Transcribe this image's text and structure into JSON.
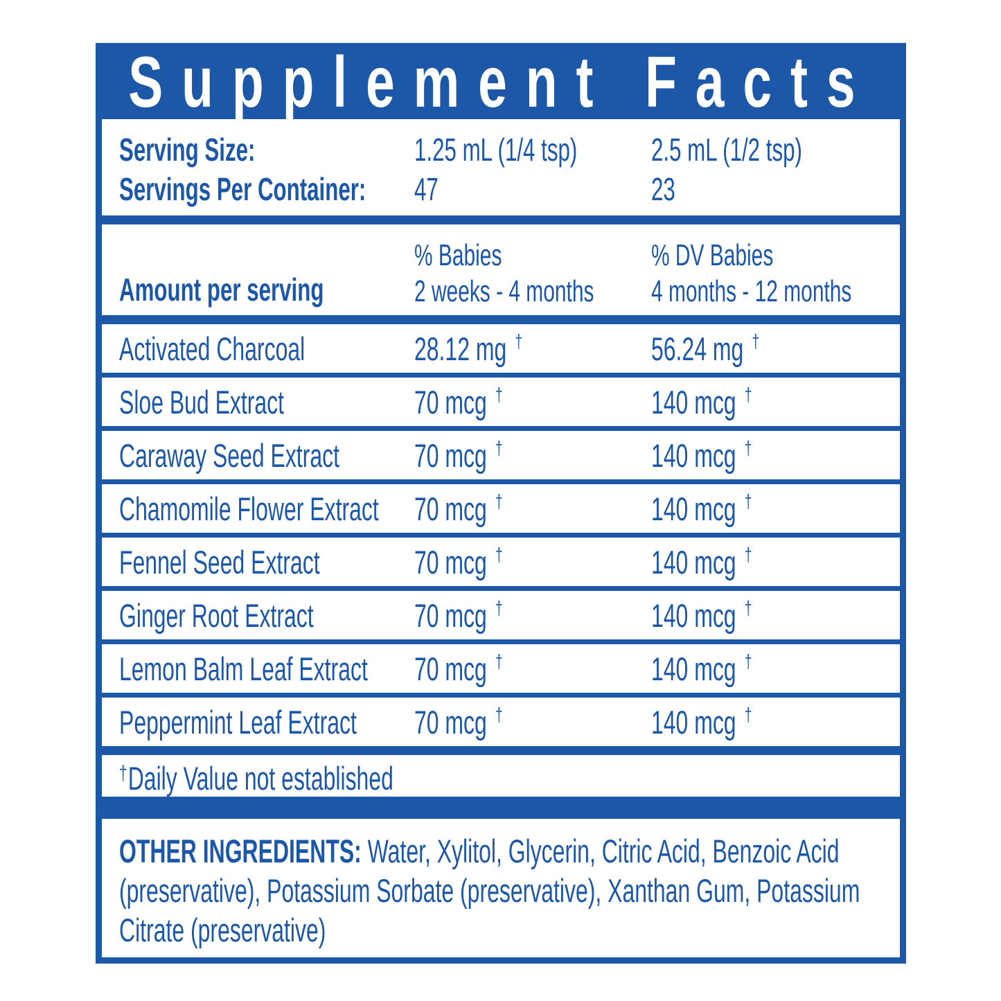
{
  "label": {
    "title": "Supplement Facts",
    "serving": {
      "size_label": "Serving Size:",
      "size_value_1": "1.25 mL (1/4 tsp)",
      "size_value_2": "2.5 mL (1/2 tsp)",
      "per_container_label": "Servings Per Container:",
      "per_container_value_1": "47",
      "per_container_value_2": "23"
    },
    "columns": {
      "amount_header": "Amount per serving",
      "col1_line1": "% Babies",
      "col1_line2": "2 weeks - 4 months",
      "col2_line1": "% DV Babies",
      "col2_line2": "4 months - 12 months"
    },
    "dagger": "†",
    "rows": [
      {
        "name": "Activated Charcoal",
        "amount1": "28.12 mg",
        "amount2": "56.24 mg"
      },
      {
        "name": "Sloe Bud Extract",
        "amount1": "70 mcg",
        "amount2": "140 mcg"
      },
      {
        "name": "Caraway Seed Extract",
        "amount1": "70 mcg",
        "amount2": "140 mcg"
      },
      {
        "name": "Chamomile Flower Extract",
        "amount1": "70 mcg",
        "amount2": "140 mcg"
      },
      {
        "name": "Fennel Seed Extract",
        "amount1": "70 mcg",
        "amount2": "140 mcg"
      },
      {
        "name": "Ginger Root Extract",
        "amount1": "70 mcg",
        "amount2": "140 mcg"
      },
      {
        "name": "Lemon Balm Leaf Extract",
        "amount1": "70 mcg",
        "amount2": "140 mcg"
      },
      {
        "name": "Peppermint Leaf Extract",
        "amount1": "70 mcg",
        "amount2": "140 mcg"
      }
    ],
    "footnote": {
      "symbol": "†",
      "text": "Daily Value not established"
    },
    "other_ingredients": {
      "lead": "OTHER INGREDIENTS:",
      "text": " Water, Xylitol, Glycerin, Citric Acid, Benzoic Acid (preservative), Potassium Sorbate (preservative), Xanthan Gum, Potassium Citrate (preservative)"
    },
    "colors": {
      "blue": "#1c57a8",
      "white": "#ffffff"
    }
  }
}
